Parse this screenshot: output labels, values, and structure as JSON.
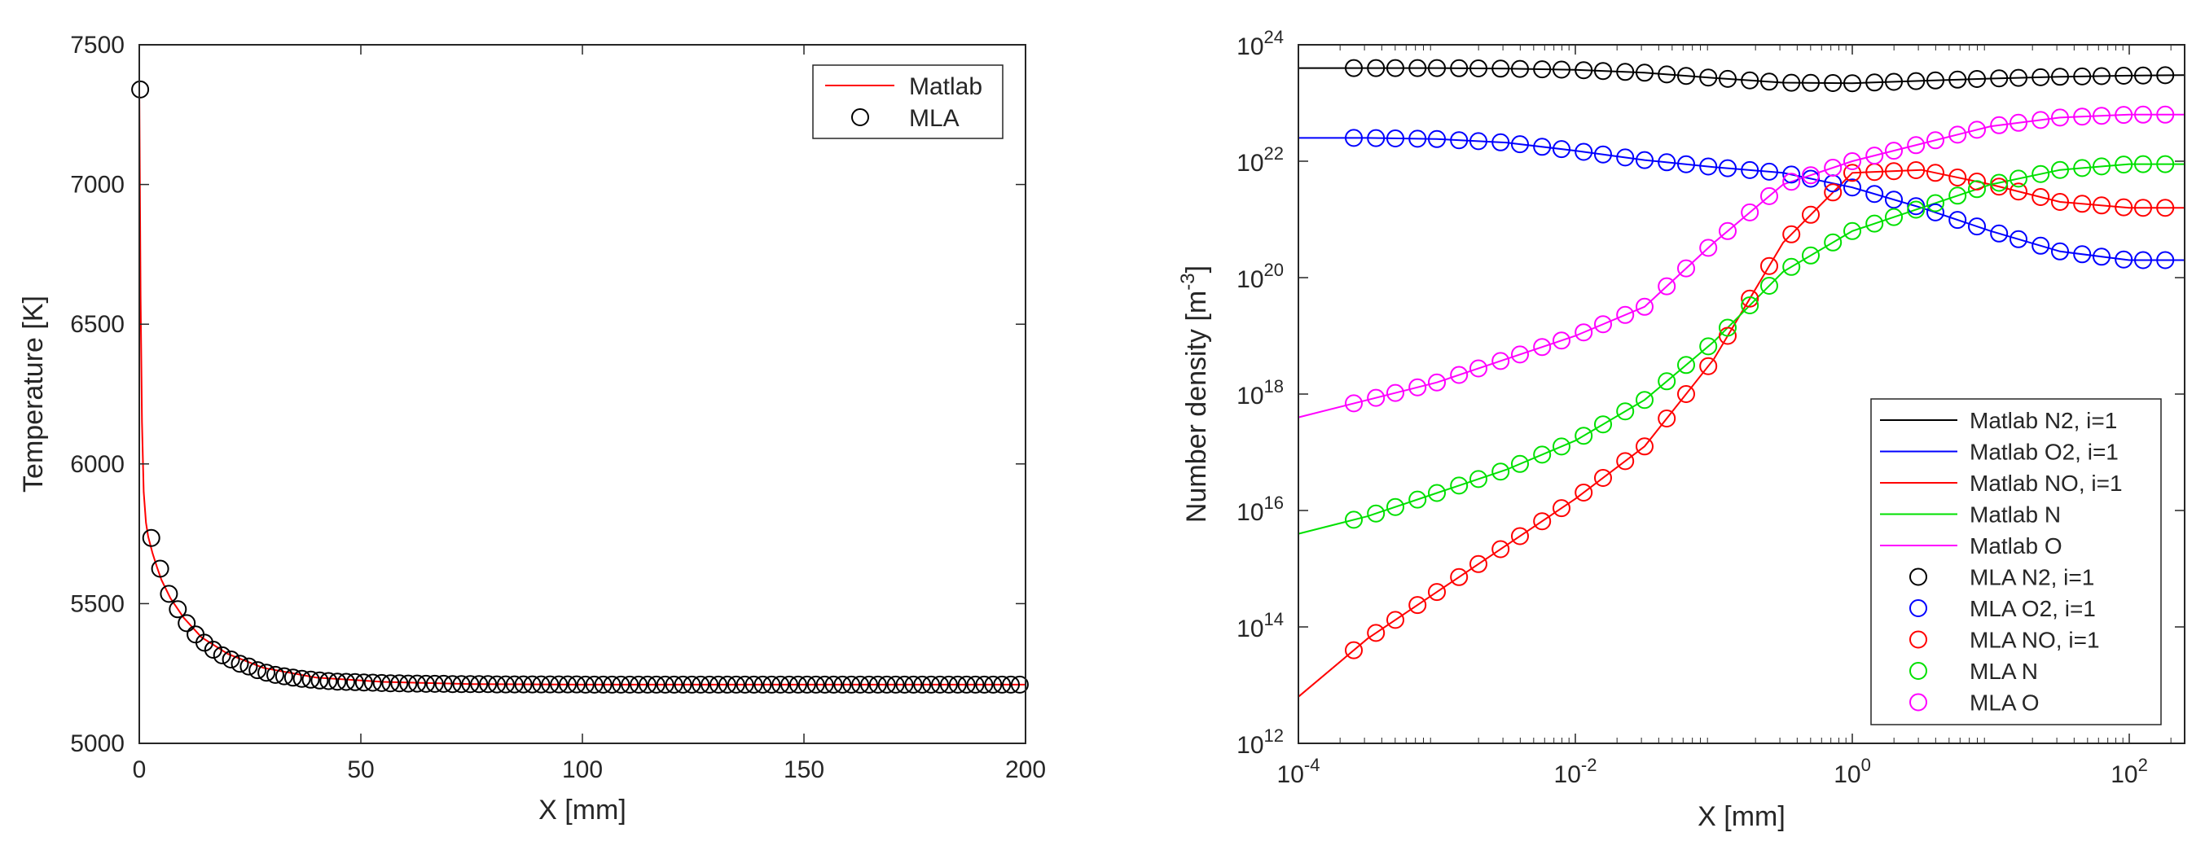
{
  "chart_data": [
    {
      "type": "line",
      "xlabel": "X [mm]",
      "ylabel": "Temperature [K]",
      "xlim": [
        0,
        200
      ],
      "ylim": [
        5000,
        7500
      ],
      "xticks": [
        "0",
        "50",
        "100",
        "150",
        "200"
      ],
      "yticks": [
        "5000",
        "5500",
        "6000",
        "6500",
        "7000",
        "7500"
      ],
      "grid": false,
      "legend_position": "top-right",
      "legend": [
        "Matlab",
        "MLA"
      ],
      "series": [
        {
          "name": "Matlab",
          "style": "line",
          "color": "#ff0000",
          "x": [
            0,
            0.3,
            0.6,
            1,
            1.5,
            2,
            3,
            4,
            5,
            7,
            10,
            14,
            20,
            28,
            40,
            55,
            75,
            100,
            150,
            200
          ],
          "values": [
            7350,
            6600,
            6150,
            5900,
            5790,
            5740,
            5680,
            5630,
            5585,
            5520,
            5450,
            5380,
            5320,
            5270,
            5235,
            5220,
            5212,
            5210,
            5210,
            5210
          ]
        },
        {
          "name": "MLA",
          "style": "marker",
          "color": "#000000",
          "x": [
            0.2,
            2.7,
            4.7,
            6.7,
            8.7,
            10.7,
            12.7,
            14.7,
            16.7,
            18.7,
            20.7,
            22.7,
            24.7,
            26.7,
            28.7,
            30.7,
            32.7,
            34.7,
            36.7,
            38.7,
            40.7,
            42.7,
            44.7,
            46.7,
            48.7,
            50.7,
            52.7,
            54.7,
            56.7,
            58.7,
            60.7,
            62.7,
            64.7,
            66.7,
            68.7,
            70.7,
            72.7,
            74.7,
            76.7,
            78.7,
            80.7,
            82.7,
            84.7,
            86.7,
            88.7,
            90.7,
            92.7,
            94.7,
            96.7,
            98.7,
            100.7,
            102.7,
            104.7,
            106.7,
            108.7,
            110.7,
            112.7,
            114.7,
            116.7,
            118.7,
            120.7,
            122.7,
            124.7,
            126.7,
            128.7,
            130.7,
            132.7,
            134.7,
            136.7,
            138.7,
            140.7,
            142.7,
            144.7,
            146.7,
            148.7,
            150.7,
            152.7,
            154.7,
            156.7,
            158.7,
            160.7,
            162.7,
            164.7,
            166.7,
            168.7,
            170.7,
            172.7,
            174.7,
            176.7,
            178.7,
            180.7,
            182.7,
            184.7,
            186.7,
            188.7,
            190.7,
            192.7,
            194.7,
            196.7,
            198.7
          ],
          "values": [
            7340,
            5735,
            5625,
            5535,
            5480,
            5430,
            5390,
            5360,
            5335,
            5315,
            5300,
            5285,
            5275,
            5262,
            5253,
            5245,
            5240,
            5235,
            5231,
            5228,
            5225,
            5223,
            5221,
            5220,
            5219,
            5218,
            5217,
            5216,
            5215,
            5215,
            5214,
            5214,
            5213,
            5213,
            5213,
            5212,
            5212,
            5212,
            5212,
            5212,
            5211,
            5211,
            5211,
            5211,
            5211,
            5211,
            5211,
            5211,
            5211,
            5211,
            5210,
            5210,
            5210,
            5210,
            5210,
            5210,
            5210,
            5210,
            5210,
            5210,
            5210,
            5210,
            5210,
            5210,
            5210,
            5210,
            5210,
            5210,
            5210,
            5210,
            5210,
            5210,
            5210,
            5210,
            5210,
            5210,
            5210,
            5210,
            5210,
            5210,
            5210,
            5210,
            5210,
            5210,
            5210,
            5210,
            5210,
            5210,
            5210,
            5210,
            5210,
            5210,
            5210,
            5210,
            5210,
            5210,
            5210,
            5210,
            5210,
            5210
          ]
        }
      ]
    },
    {
      "type": "line",
      "xscale": "log",
      "yscale": "log",
      "xlabel": "X [mm]",
      "ylabel": "Number density [m",
      "ylabel_suffix": "-3]",
      "ylabel_superscript": "-3",
      "xlim_log10": [
        -4,
        2.4
      ],
      "ylim_log10": [
        12,
        24
      ],
      "xticks": [
        {
          "base": "10",
          "exp": "-4"
        },
        {
          "base": "10",
          "exp": "-2"
        },
        {
          "base": "10",
          "exp": "0"
        },
        {
          "base": "10",
          "exp": "2"
        }
      ],
      "yticks": [
        {
          "base": "10",
          "exp": "12"
        },
        {
          "base": "10",
          "exp": "14"
        },
        {
          "base": "10",
          "exp": "16"
        },
        {
          "base": "10",
          "exp": "18"
        },
        {
          "base": "10",
          "exp": "20"
        },
        {
          "base": "10",
          "exp": "22"
        },
        {
          "base": "10",
          "exp": "24"
        }
      ],
      "grid": false,
      "legend_position": "bottom-right",
      "legend": [
        "Matlab N2, i=1",
        "Matlab O2, i=1",
        "Matlab NO, i=1",
        "Matlab N",
        "Matlab O",
        "MLA N2, i=1",
        "MLA O2, i=1",
        "MLA NO, i=1",
        "MLA N",
        "MLA O"
      ],
      "x_log10": [
        -4,
        -3.5,
        -3,
        -2.5,
        -2,
        -1.5,
        -1,
        -0.5,
        0,
        0.5,
        1,
        1.5,
        2,
        2.4
      ],
      "marker_x_log10": [
        -3.6,
        -3.44,
        -3.3,
        -3.14,
        -3.0,
        -2.84,
        -2.7,
        -2.54,
        -2.4,
        -2.24,
        -2.1,
        -1.94,
        -1.8,
        -1.64,
        -1.5,
        -1.34,
        -1.2,
        -1.04,
        -0.9,
        -0.74,
        -0.6,
        -0.44,
        -0.3,
        -0.14,
        0.0,
        0.16,
        0.3,
        0.46,
        0.6,
        0.76,
        0.9,
        1.06,
        1.2,
        1.36,
        1.5,
        1.66,
        1.8,
        1.96,
        2.1,
        2.26
      ],
      "series": [
        {
          "name": "N2, i=1",
          "color": "#000000",
          "log10_values": [
            23.6,
            23.6,
            23.6,
            23.59,
            23.57,
            23.52,
            23.43,
            23.35,
            23.34,
            23.38,
            23.42,
            23.45,
            23.47,
            23.48
          ]
        },
        {
          "name": "O2, i=1",
          "color": "#0000ff",
          "log10_values": [
            22.4,
            22.4,
            22.38,
            22.32,
            22.18,
            22.02,
            21.9,
            21.8,
            21.55,
            21.2,
            20.8,
            20.45,
            20.3,
            20.3
          ]
        },
        {
          "name": "NO, i=1",
          "color": "#ff0000",
          "log10_values": [
            12.8,
            13.8,
            14.6,
            15.4,
            16.2,
            17.1,
            18.6,
            20.6,
            21.8,
            21.85,
            21.6,
            21.3,
            21.2,
            21.2
          ]
        },
        {
          "name": "N",
          "color": "#00e000",
          "log10_values": [
            15.6,
            15.9,
            16.3,
            16.7,
            17.2,
            17.9,
            18.9,
            20.1,
            20.8,
            21.2,
            21.6,
            21.85,
            21.95,
            21.95
          ]
        },
        {
          "name": "O",
          "color": "#ff00ff",
          "log10_values": [
            17.6,
            17.9,
            18.2,
            18.6,
            19.0,
            19.5,
            20.6,
            21.6,
            22.0,
            22.3,
            22.6,
            22.75,
            22.8,
            22.8
          ]
        }
      ]
    }
  ]
}
